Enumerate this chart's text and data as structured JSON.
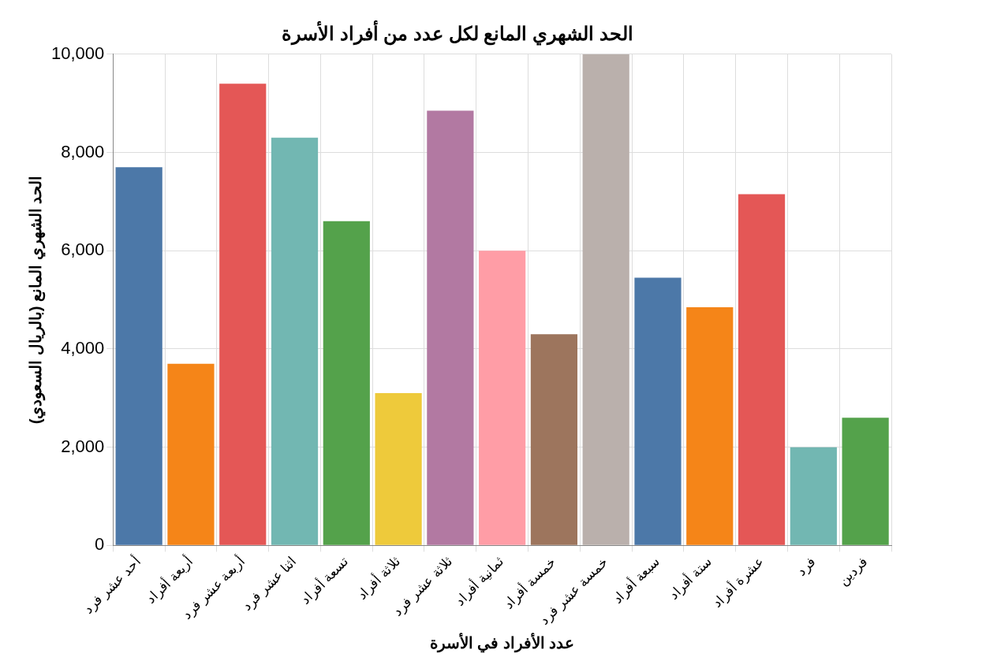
{
  "chart_data": {
    "type": "bar",
    "title": "الحد الشهري المانع لكل عدد من أفراد الأسرة",
    "xlabel": "عدد الأفراد في الأسرة",
    "ylabel": "الحد الشهري المانع (بالريال السعودي)",
    "categories": [
      "أحد عشر فرد",
      "أربعة أفراد",
      "أربعة عشر فرد",
      "اثنا عشر فرد",
      "تسعة أفراد",
      "ثلاثة أفراد",
      "ثلاثة عشر فرد",
      "ثمانية أفراد",
      "خمسة أفراد",
      "خمسة عشر فرد",
      "سبعة أفراد",
      "ستة أفراد",
      "عشرة أفراد",
      "فرد",
      "فردين"
    ],
    "values": [
      7700,
      3700,
      9400,
      8300,
      6600,
      3100,
      8850,
      6000,
      4300,
      10000,
      5450,
      4850,
      7150,
      2000,
      2600
    ],
    "colors": [
      "#4c78a8",
      "#f58518",
      "#e45756",
      "#72b7b2",
      "#54a24b",
      "#eeca3b",
      "#b279a2",
      "#ff9da6",
      "#9d755d",
      "#bab0ac",
      "#4c78a8",
      "#f58518",
      "#e45756",
      "#72b7b2",
      "#54a24b"
    ],
    "ylim": [
      0,
      10000
    ],
    "yticks": [
      {
        "value": 0,
        "label": "0"
      },
      {
        "value": 2000,
        "label": "2,000"
      },
      {
        "value": 4000,
        "label": "4,000"
      },
      {
        "value": 6000,
        "label": "6,000"
      },
      {
        "value": 8000,
        "label": "8,000"
      },
      {
        "value": 10000,
        "label": "10,000"
      }
    ],
    "grid": true,
    "legend": false
  }
}
